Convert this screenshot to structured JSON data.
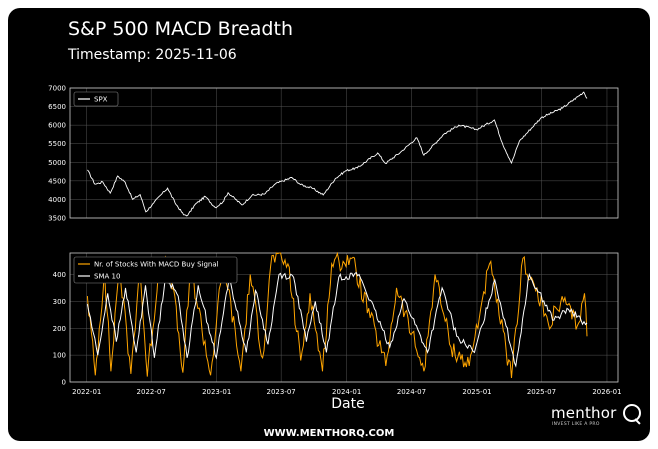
{
  "title": "S&P 500 MACD Breadth",
  "timestamp_label": "Timestamp: 2025-11-06",
  "footer": "WWW.MENTHORQ.COM",
  "logo": {
    "word": "menthor",
    "tagline": "INVEST LIKE A PRO"
  },
  "colors": {
    "background": "#000000",
    "spx": "#ffffff",
    "count": "#ffa500",
    "sma": "#ffffff",
    "grid": "#555555"
  },
  "chart_data": [
    {
      "type": "line",
      "legend": [
        "SPX"
      ],
      "legend_placement": "top-left",
      "xlabel": "",
      "ylabel": "",
      "ylim": [
        3500,
        7000
      ],
      "y_ticks": [
        3500,
        4000,
        4500,
        5000,
        5500,
        6000,
        6500,
        7000
      ],
      "grid": true,
      "series": [
        {
          "name": "SPX",
          "points": [
            [
              "2022-01-03",
              4796
            ],
            [
              "2022-01-24",
              4410
            ],
            [
              "2022-02-15",
              4470
            ],
            [
              "2022-03-08",
              4170
            ],
            [
              "2022-03-29",
              4630
            ],
            [
              "2022-04-19",
              4460
            ],
            [
              "2022-05-10",
              4000
            ],
            [
              "2022-05-31",
              4130
            ],
            [
              "2022-06-16",
              3667
            ],
            [
              "2022-07-08",
              3900
            ],
            [
              "2022-07-29",
              4130
            ],
            [
              "2022-08-16",
              4305
            ],
            [
              "2022-09-06",
              3910
            ],
            [
              "2022-09-30",
              3585
            ],
            [
              "2022-10-12",
              3577
            ],
            [
              "2022-11-01",
              3860
            ],
            [
              "2022-11-30",
              4080
            ],
            [
              "2022-12-28",
              3780
            ],
            [
              "2023-01-18",
              3930
            ],
            [
              "2023-02-02",
              4180
            ],
            [
              "2023-03-13",
              3850
            ],
            [
              "2023-04-10",
              4110
            ],
            [
              "2023-05-15",
              4140
            ],
            [
              "2023-06-15",
              4420
            ],
            [
              "2023-07-31",
              4590
            ],
            [
              "2023-08-25",
              4400
            ],
            [
              "2023-09-29",
              4290
            ],
            [
              "2023-10-27",
              4120
            ],
            [
              "2023-11-30",
              4560
            ],
            [
              "2023-12-29",
              4770
            ],
            [
              "2024-01-31",
              4850
            ],
            [
              "2024-03-28",
              5250
            ],
            [
              "2024-04-19",
              4970
            ],
            [
              "2024-05-31",
              5270
            ],
            [
              "2024-07-16",
              5660
            ],
            [
              "2024-08-05",
              5190
            ],
            [
              "2024-09-30",
              5760
            ],
            [
              "2024-11-11",
              6000
            ],
            [
              "2024-12-31",
              5880
            ],
            [
              "2025-02-19",
              6140
            ],
            [
              "2025-03-13",
              5520
            ],
            [
              "2025-04-08",
              4980
            ],
            [
              "2025-04-30",
              5570
            ],
            [
              "2025-06-30",
              6200
            ],
            [
              "2025-08-29",
              6460
            ],
            [
              "2025-10-28",
              6890
            ],
            [
              "2025-11-06",
              6720
            ]
          ]
        }
      ]
    },
    {
      "type": "line",
      "legend": [
        "Nr. of Stocks With MACD Buy Signal",
        "SMA 10"
      ],
      "legend_placement": "top-left",
      "xlabel": "Date",
      "ylabel": "",
      "ylim": [
        0,
        480
      ],
      "y_ticks": [
        0,
        100,
        200,
        300,
        400
      ],
      "x_ticks": [
        "2022-01",
        "2022-07",
        "2023-01",
        "2023-07",
        "2024-01",
        "2024-07",
        "2025-01",
        "2025-07",
        "2026-01"
      ],
      "grid": true,
      "series": [
        {
          "name": "Nr. of Stocks With MACD Buy Signal",
          "points": [
            [
              "2022-01-03",
              320
            ],
            [
              "2022-01-25",
              25
            ],
            [
              "2022-02-20",
              420
            ],
            [
              "2022-03-10",
              40
            ],
            [
              "2022-04-02",
              440
            ],
            [
              "2022-05-05",
              30
            ],
            [
              "2022-05-30",
              430
            ],
            [
              "2022-06-20",
              20
            ],
            [
              "2022-07-25",
              445
            ],
            [
              "2022-08-25",
              420
            ],
            [
              "2022-09-28",
              35
            ],
            [
              "2022-10-20",
              430
            ],
            [
              "2022-12-15",
              25
            ],
            [
              "2023-01-20",
              460
            ],
            [
              "2023-03-10",
              40
            ],
            [
              "2023-04-05",
              400
            ],
            [
              "2023-05-10",
              90
            ],
            [
              "2023-06-05",
              470
            ],
            [
              "2023-07-20",
              440
            ],
            [
              "2023-08-25",
              80
            ],
            [
              "2023-09-20",
              330
            ],
            [
              "2023-10-25",
              40
            ],
            [
              "2023-11-20",
              440
            ],
            [
              "2024-01-15",
              460
            ],
            [
              "2024-04-20",
              60
            ],
            [
              "2024-05-20",
              350
            ],
            [
              "2024-08-05",
              40
            ],
            [
              "2024-09-05",
              400
            ],
            [
              "2024-10-20",
              130
            ],
            [
              "2024-12-10",
              60
            ],
            [
              "2025-02-05",
              440
            ],
            [
              "2025-04-08",
              15
            ],
            [
              "2025-05-10",
              460
            ],
            [
              "2025-07-20",
              220
            ],
            [
              "2025-09-01",
              300
            ],
            [
              "2025-10-10",
              210
            ],
            [
              "2025-10-30",
              330
            ],
            [
              "2025-11-06",
              170
            ]
          ]
        },
        {
          "name": "SMA 10",
          "points": [
            [
              "2022-01-03",
              290
            ],
            [
              "2022-02-01",
              100
            ],
            [
              "2022-03-01",
              330
            ],
            [
              "2022-03-25",
              150
            ],
            [
              "2022-04-20",
              350
            ],
            [
              "2022-05-20",
              110
            ],
            [
              "2022-06-15",
              360
            ],
            [
              "2022-07-10",
              90
            ],
            [
              "2022-08-10",
              390
            ],
            [
              "2022-09-15",
              320
            ],
            [
              "2022-10-10",
              90
            ],
            [
              "2022-11-10",
              360
            ],
            [
              "2022-12-31",
              90
            ],
            [
              "2023-02-05",
              390
            ],
            [
              "2023-03-25",
              110
            ],
            [
              "2023-04-20",
              340
            ],
            [
              "2023-05-25",
              140
            ],
            [
              "2023-06-25",
              400
            ],
            [
              "2023-08-05",
              390
            ],
            [
              "2023-09-10",
              150
            ],
            [
              "2023-10-05",
              300
            ],
            [
              "2023-11-05",
              110
            ],
            [
              "2023-12-10",
              390
            ],
            [
              "2024-02-05",
              400
            ],
            [
              "2024-05-01",
              130
            ],
            [
              "2024-06-10",
              310
            ],
            [
              "2024-08-15",
              110
            ],
            [
              "2024-09-25",
              350
            ],
            [
              "2024-11-05",
              170
            ],
            [
              "2024-12-25",
              110
            ],
            [
              "2025-02-20",
              380
            ],
            [
              "2025-04-20",
              60
            ],
            [
              "2025-05-28",
              400
            ],
            [
              "2025-08-05",
              230
            ],
            [
              "2025-09-15",
              270
            ],
            [
              "2025-10-20",
              230
            ],
            [
              "2025-11-06",
              220
            ]
          ]
        }
      ]
    }
  ]
}
